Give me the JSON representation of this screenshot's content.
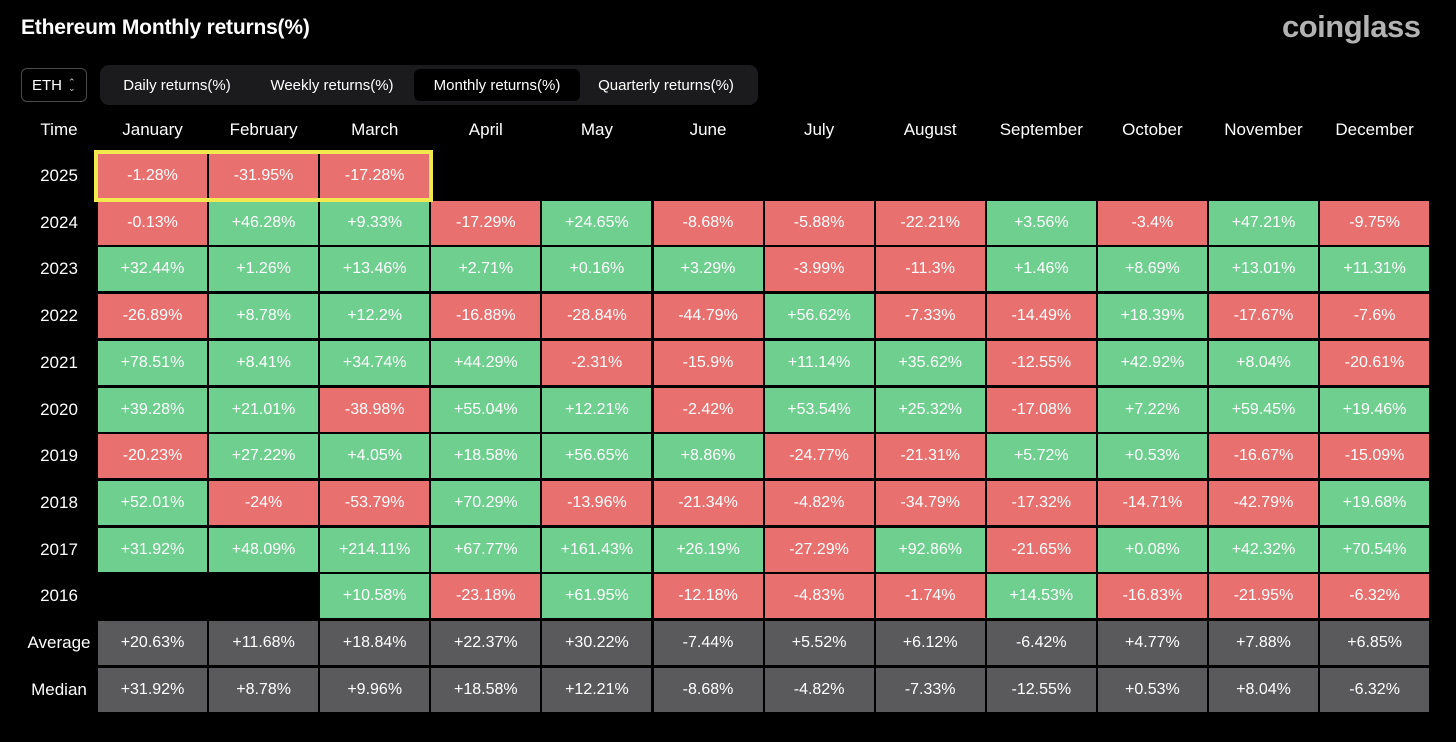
{
  "header": {
    "title": "Ethereum Monthly returns(%)",
    "brand": "coinglass"
  },
  "asset_select": {
    "value": "ETH"
  },
  "tabs": [
    {
      "label": "Daily returns(%)",
      "active": false
    },
    {
      "label": "Weekly returns(%)",
      "active": false
    },
    {
      "label": "Monthly returns(%)",
      "active": true
    },
    {
      "label": "Quarterly returns(%)",
      "active": false
    }
  ],
  "colors": {
    "positive": "#6fcf8f",
    "negative": "#e8716f",
    "summary": "#5a5a5c",
    "highlight": "#f2e94e"
  },
  "chart_data": {
    "type": "table",
    "title": "Ethereum Monthly returns(%)",
    "corner_label": "Time",
    "columns": [
      "January",
      "February",
      "March",
      "April",
      "May",
      "June",
      "July",
      "August",
      "September",
      "October",
      "November",
      "December"
    ],
    "rows": [
      {
        "label": "2025",
        "values": [
          "-1.28%",
          "-31.95%",
          "-17.28%",
          "",
          "",
          "",
          "",
          "",
          "",
          "",
          "",
          ""
        ]
      },
      {
        "label": "2024",
        "values": [
          "-0.13%",
          "+46.28%",
          "+9.33%",
          "-17.29%",
          "+24.65%",
          "-8.68%",
          "-5.88%",
          "-22.21%",
          "+3.56%",
          "-3.4%",
          "+47.21%",
          "-9.75%"
        ]
      },
      {
        "label": "2023",
        "values": [
          "+32.44%",
          "+1.26%",
          "+13.46%",
          "+2.71%",
          "+0.16%",
          "+3.29%",
          "-3.99%",
          "-11.3%",
          "+1.46%",
          "+8.69%",
          "+13.01%",
          "+11.31%"
        ]
      },
      {
        "label": "2022",
        "values": [
          "-26.89%",
          "+8.78%",
          "+12.2%",
          "-16.88%",
          "-28.84%",
          "-44.79%",
          "+56.62%",
          "-7.33%",
          "-14.49%",
          "+18.39%",
          "-17.67%",
          "-7.6%"
        ]
      },
      {
        "label": "2021",
        "values": [
          "+78.51%",
          "+8.41%",
          "+34.74%",
          "+44.29%",
          "-2.31%",
          "-15.9%",
          "+11.14%",
          "+35.62%",
          "-12.55%",
          "+42.92%",
          "+8.04%",
          "-20.61%"
        ]
      },
      {
        "label": "2020",
        "values": [
          "+39.28%",
          "+21.01%",
          "-38.98%",
          "+55.04%",
          "+12.21%",
          "-2.42%",
          "+53.54%",
          "+25.32%",
          "-17.08%",
          "+7.22%",
          "+59.45%",
          "+19.46%"
        ]
      },
      {
        "label": "2019",
        "values": [
          "-20.23%",
          "+27.22%",
          "+4.05%",
          "+18.58%",
          "+56.65%",
          "+8.86%",
          "-24.77%",
          "-21.31%",
          "+5.72%",
          "+0.53%",
          "-16.67%",
          "-15.09%"
        ]
      },
      {
        "label": "2018",
        "values": [
          "+52.01%",
          "-24%",
          "-53.79%",
          "+70.29%",
          "-13.96%",
          "-21.34%",
          "-4.82%",
          "-34.79%",
          "-17.32%",
          "-14.71%",
          "-42.79%",
          "+19.68%"
        ]
      },
      {
        "label": "2017",
        "values": [
          "+31.92%",
          "+48.09%",
          "+214.11%",
          "+67.77%",
          "+161.43%",
          "+26.19%",
          "-27.29%",
          "+92.86%",
          "-21.65%",
          "+0.08%",
          "+42.32%",
          "+70.54%"
        ]
      },
      {
        "label": "2016",
        "values": [
          "",
          "",
          "+10.58%",
          "-23.18%",
          "+61.95%",
          "-12.18%",
          "-4.83%",
          "-1.74%",
          "+14.53%",
          "-16.83%",
          "-21.95%",
          "-6.32%"
        ]
      }
    ],
    "summary_rows": [
      {
        "label": "Average",
        "values": [
          "+20.63%",
          "+11.68%",
          "+18.84%",
          "+22.37%",
          "+30.22%",
          "-7.44%",
          "+5.52%",
          "+6.12%",
          "-6.42%",
          "+4.77%",
          "+7.88%",
          "+6.85%"
        ]
      },
      {
        "label": "Median",
        "values": [
          "+31.92%",
          "+8.78%",
          "+9.96%",
          "+18.58%",
          "+12.21%",
          "-8.68%",
          "-4.82%",
          "-7.33%",
          "-12.55%",
          "+0.53%",
          "+8.04%",
          "-6.32%"
        ]
      }
    ],
    "highlighted": {
      "row": "2025",
      "columns": [
        "January",
        "February",
        "March"
      ]
    }
  }
}
